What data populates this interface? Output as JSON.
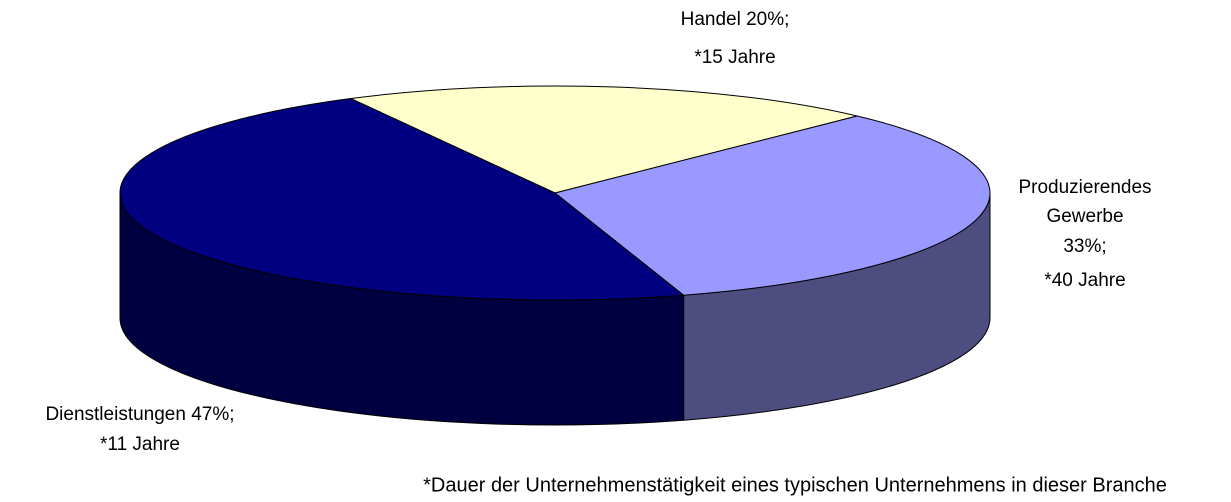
{
  "chart_data": {
    "type": "pie",
    "categories": [
      "Handel",
      "Produzierendes Gewerbe",
      "Dienstleistungen"
    ],
    "values": [
      20,
      33,
      47
    ],
    "value_labels": [
      [
        "Handel 20%;",
        "*15 Jahre"
      ],
      [
        "Produzierendes",
        "Gewerbe",
        "33%;",
        "*40 Jahre"
      ],
      [
        "Dienstleistungen 47%;",
        "*11 Jahre"
      ]
    ],
    "colors": [
      "#ffffcc",
      "#9999ff",
      "#000080"
    ],
    "note": "*Dauer der Unternehmenstätigkeit eines typischen Unternehmens in dieser Branche"
  }
}
